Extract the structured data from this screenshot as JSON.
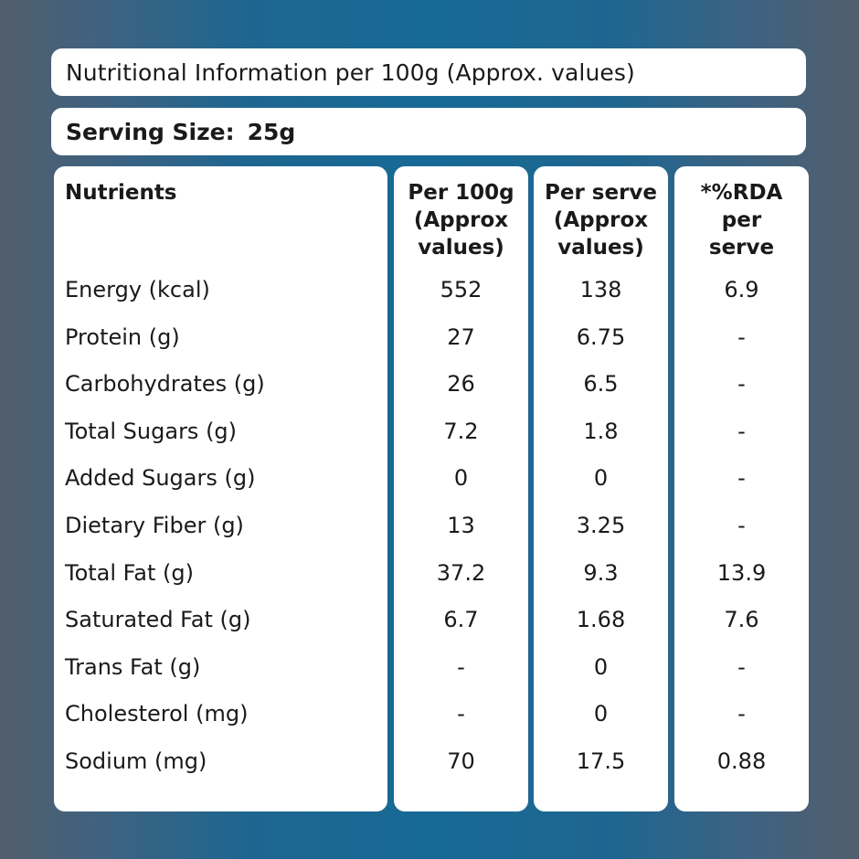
{
  "title": "Nutritional Information per 100g (Approx. values)",
  "serving": {
    "label": "Serving Size:",
    "value": "25g"
  },
  "headers": {
    "nutrients": [
      "Nutrients"
    ],
    "per_100g": [
      "Per 100g",
      "(Approx",
      "values)"
    ],
    "per_serve": [
      "Per serve",
      "(Approx",
      "values)"
    ],
    "rda": [
      "*%RDA",
      "per",
      "serve"
    ]
  },
  "rows": [
    {
      "name": "Energy (kcal)",
      "per_100g": "552",
      "per_serve": "138",
      "rda": "6.9"
    },
    {
      "name": "Protein (g)",
      "per_100g": "27",
      "per_serve": "6.75",
      "rda": "-"
    },
    {
      "name": "Carbohydrates (g)",
      "per_100g": "26",
      "per_serve": "6.5",
      "rda": "-"
    },
    {
      "name": "Total Sugars (g)",
      "per_100g": "7.2",
      "per_serve": "1.8",
      "rda": "-"
    },
    {
      "name": "Added Sugars (g)",
      "per_100g": "0",
      "per_serve": "0",
      "rda": "-"
    },
    {
      "name": "Dietary Fiber (g)",
      "per_100g": "13",
      "per_serve": "3.25",
      "rda": "-"
    },
    {
      "name": "Total Fat (g)",
      "per_100g": "37.2",
      "per_serve": "9.3",
      "rda": "13.9"
    },
    {
      "name": "Saturated Fat (g)",
      "per_100g": "6.7",
      "per_serve": "1.68",
      "rda": "7.6"
    },
    {
      "name": "Trans Fat (g)",
      "per_100g": "-",
      "per_serve": "0",
      "rda": "-"
    },
    {
      "name": "Cholesterol (mg)",
      "per_100g": "-",
      "per_serve": "0",
      "rda": "-"
    },
    {
      "name": "Sodium (mg)",
      "per_100g": "70",
      "per_serve": "17.5",
      "rda": "0.88"
    }
  ]
}
